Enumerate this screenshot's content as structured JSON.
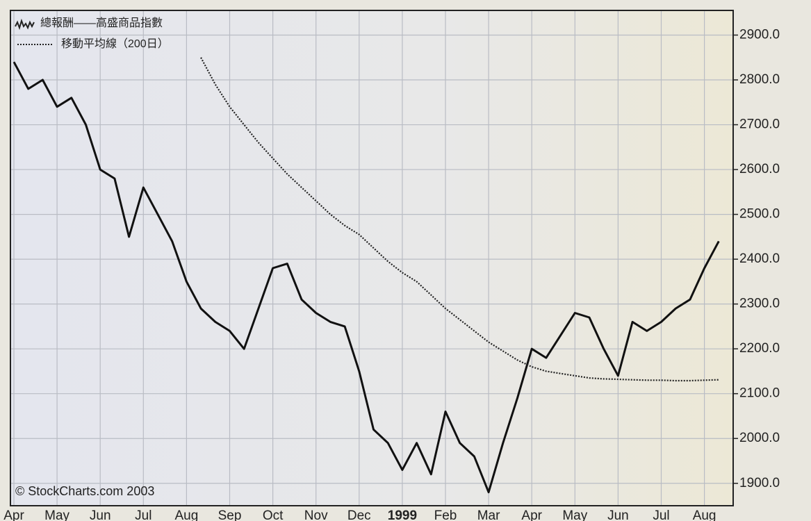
{
  "chart_data": {
    "type": "line",
    "categories": [
      "Apr",
      null,
      null,
      "May",
      null,
      null,
      "Jun",
      null,
      null,
      "Jul",
      null,
      null,
      "Aug",
      null,
      null,
      "Sep",
      null,
      null,
      "Oct",
      null,
      null,
      "Nov",
      null,
      null,
      "Dec",
      null,
      null,
      "1999",
      null,
      null,
      "Feb",
      null,
      null,
      "Mar",
      null,
      null,
      "Apr",
      null,
      null,
      "May",
      null,
      null,
      "Jun",
      null,
      null,
      "Jul",
      null,
      null,
      "Aug",
      null
    ],
    "series": [
      {
        "name": "總報酬——高盛商品指數",
        "color": "#111111",
        "values": [
          2840,
          2780,
          2800,
          2740,
          2760,
          2700,
          2600,
          2580,
          2450,
          2560,
          2500,
          2440,
          2350,
          2290,
          2260,
          2240,
          2200,
          2290,
          2380,
          2390,
          2310,
          2280,
          2260,
          2250,
          2150,
          2020,
          1990,
          1930,
          1990,
          1920,
          2060,
          1990,
          1960,
          1880,
          1990,
          2090,
          2200,
          2180,
          2230,
          2280,
          2270,
          2200,
          2140,
          2260,
          2240,
          2260,
          2290,
          2310,
          2380,
          2440
        ]
      },
      {
        "name": "移動平均線（200日）",
        "color": "#222222",
        "style": "dotted",
        "values": [
          null,
          null,
          null,
          null,
          null,
          null,
          null,
          null,
          null,
          null,
          null,
          null,
          null,
          2850,
          2790,
          2740,
          2700,
          2660,
          2625,
          2590,
          2560,
          2530,
          2500,
          2475,
          2455,
          2425,
          2395,
          2370,
          2350,
          2320,
          2290,
          2265,
          2240,
          2215,
          2195,
          2175,
          2160,
          2150,
          2145,
          2140,
          2135,
          2133,
          2132,
          2131,
          2130,
          2130,
          2129,
          2129,
          2130,
          2131
        ]
      }
    ],
    "ylim": [
      1850,
      2955
    ],
    "yticks": [
      {
        "value": 1900,
        "label": "1900.0"
      },
      {
        "value": 2000,
        "label": "2000.0"
      },
      {
        "value": 2100,
        "label": "2100.0"
      },
      {
        "value": 2200,
        "label": "2200.0"
      },
      {
        "value": 2300,
        "label": "2300.0"
      },
      {
        "value": 2400,
        "label": "2400.0"
      },
      {
        "value": 2500,
        "label": "2500.0"
      },
      {
        "value": 2600,
        "label": "2600.0"
      },
      {
        "value": 2700,
        "label": "2700.0"
      },
      {
        "value": 2800,
        "label": "2800.0"
      },
      {
        "value": 2900,
        "label": "2900.0"
      }
    ],
    "y_axis_side": "right",
    "grid": true,
    "legend": "upper left",
    "annotation": "© StockCharts.com 2003"
  }
}
